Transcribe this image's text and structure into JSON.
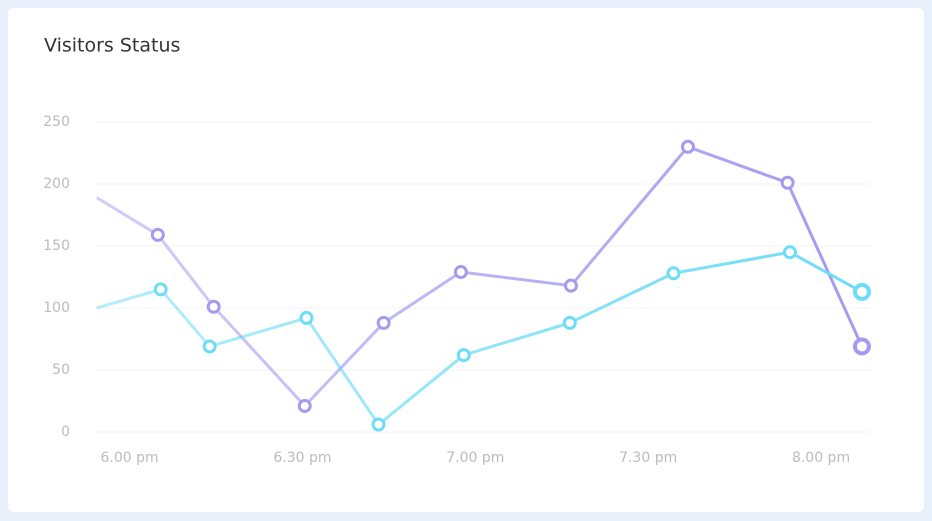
{
  "chart_data": {
    "type": "line",
    "title": "Visitors Status",
    "xlim": [
      -6,
      128.5
    ],
    "ylim": [
      0,
      250
    ],
    "xticks": [
      {
        "value": 0,
        "label": "6.00 pm"
      },
      {
        "value": 30,
        "label": "6.30 pm"
      },
      {
        "value": 60,
        "label": "7.00 pm"
      },
      {
        "value": 90,
        "label": "7.30 pm"
      },
      {
        "value": 120,
        "label": "8.00 pm"
      }
    ],
    "yticks": [
      0,
      50,
      100,
      150,
      200,
      250
    ],
    "grid": true,
    "series": [
      {
        "color": "#a29bf0",
        "x": [
          -5.7,
          4.9,
          14.6,
          30.4,
          44.1,
          57.5,
          76.6,
          96.9,
          114.2,
          127.1
        ],
        "values": [
          189,
          159,
          101,
          21,
          88,
          129,
          118,
          230,
          201,
          69
        ]
      },
      {
        "color": "#6ddcf7",
        "x": [
          -5.7,
          5.4,
          13.9,
          30.7,
          43.2,
          58.0,
          76.4,
          94.4,
          114.6,
          127.1
        ],
        "values": [
          100,
          115,
          69,
          92,
          6,
          62,
          88,
          128,
          145,
          113
        ]
      }
    ]
  }
}
